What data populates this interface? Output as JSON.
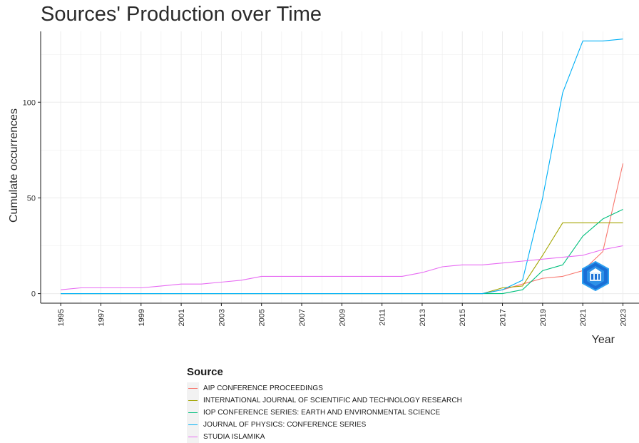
{
  "chart_data": {
    "type": "line",
    "title": "Sources' Production over Time",
    "xlabel": "Year",
    "ylabel": "Cumulate occurrences",
    "xlim": [
      1994,
      2023.8
    ],
    "ylim": [
      -5,
      137
    ],
    "x_ticks": [
      1995,
      1997,
      1999,
      2001,
      2003,
      2005,
      2007,
      2009,
      2011,
      2013,
      2015,
      2017,
      2019,
      2021,
      2023
    ],
    "y_ticks": [
      0,
      50,
      100
    ],
    "grid": true,
    "legend_title": "Source",
    "legend_position": "bottom",
    "x": [
      1995,
      1996,
      1997,
      1998,
      1999,
      2000,
      2001,
      2002,
      2003,
      2004,
      2005,
      2006,
      2007,
      2008,
      2009,
      2010,
      2011,
      2012,
      2013,
      2014,
      2015,
      2016,
      2017,
      2018,
      2019,
      2020,
      2021,
      2022,
      2023
    ],
    "series": [
      {
        "name": "AIP CONFERENCE PROCEEDINGS",
        "color": "#F8766D",
        "values": [
          0,
          0,
          0,
          0,
          0,
          0,
          0,
          0,
          0,
          0,
          0,
          0,
          0,
          0,
          0,
          0,
          0,
          0,
          0,
          0,
          0,
          0,
          2,
          5,
          8,
          9,
          12,
          22,
          68
        ]
      },
      {
        "name": "INTERNATIONAL JOURNAL OF SCIENTIFIC AND TECHNOLOGY RESEARCH",
        "color": "#A3A500",
        "values": [
          0,
          0,
          0,
          0,
          0,
          0,
          0,
          0,
          0,
          0,
          0,
          0,
          0,
          0,
          0,
          0,
          0,
          0,
          0,
          0,
          0,
          0,
          3,
          4,
          20,
          37,
          37,
          37,
          37
        ]
      },
      {
        "name": "IOP CONFERENCE SERIES: EARTH AND ENVIRONMENTAL SCIENCE",
        "color": "#00BF7D",
        "values": [
          0,
          0,
          0,
          0,
          0,
          0,
          0,
          0,
          0,
          0,
          0,
          0,
          0,
          0,
          0,
          0,
          0,
          0,
          0,
          0,
          0,
          0,
          0,
          2,
          12,
          15,
          30,
          39,
          44
        ]
      },
      {
        "name": "JOURNAL OF PHYSICS: CONFERENCE SERIES",
        "color": "#00B0F6",
        "values": [
          0,
          0,
          0,
          0,
          0,
          0,
          0,
          0,
          0,
          0,
          0,
          0,
          0,
          0,
          0,
          0,
          0,
          0,
          0,
          0,
          0,
          0,
          2,
          7,
          50,
          105,
          132,
          132,
          133
        ]
      },
      {
        "name": "STUDIA ISLAMIKA",
        "color": "#E76BF3",
        "values": [
          2,
          3,
          3,
          3,
          3,
          4,
          5,
          5,
          6,
          7,
          9,
          9,
          9,
          9,
          9,
          9,
          9,
          9,
          11,
          14,
          15,
          15,
          16,
          17,
          18,
          19,
          20,
          23,
          25
        ]
      }
    ]
  }
}
